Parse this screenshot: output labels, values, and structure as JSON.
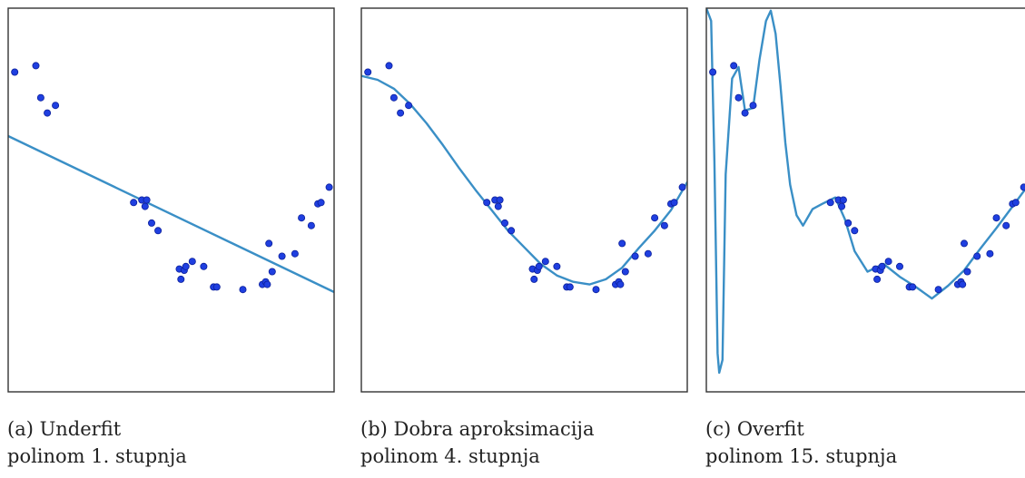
{
  "chart_data": [
    {
      "type": "scatter",
      "panel": "a",
      "caption_title": "(a) Underfit",
      "caption_sub": "polinom 1. stupnja",
      "xlim": [
        0,
        1
      ],
      "ylim": [
        -1.5,
        1.5
      ],
      "series": [
        {
          "role": "points",
          "x": [
            0.02,
            0.085,
            0.1,
            0.12,
            0.145,
            0.385,
            0.41,
            0.42,
            0.425,
            0.44,
            0.46,
            0.525,
            0.53,
            0.54,
            0.545,
            0.565,
            0.6,
            0.63,
            0.64,
            0.72,
            0.78,
            0.79,
            0.795,
            0.8,
            0.81,
            0.84,
            0.88,
            0.9,
            0.93,
            0.95,
            0.96,
            0.985
          ],
          "y": [
            1.0,
            1.05,
            0.8,
            0.68,
            0.74,
            -0.02,
            0.0,
            -0.05,
            0.0,
            -0.18,
            -0.24,
            -0.54,
            -0.62,
            -0.55,
            -0.52,
            -0.48,
            -0.52,
            -0.68,
            -0.68,
            -0.7,
            -0.66,
            -0.64,
            -0.66,
            -0.34,
            -0.56,
            -0.44,
            -0.42,
            -0.14,
            -0.2,
            -0.03,
            -0.02,
            0.1
          ]
        },
        {
          "role": "fit",
          "x": [
            0,
            1
          ],
          "y": [
            0.5,
            -0.72
          ]
        }
      ]
    },
    {
      "type": "scatter",
      "panel": "b",
      "caption_title": "(b) Dobra aproksimacija",
      "caption_sub": "polinom 4. stupnja",
      "xlim": [
        0,
        1
      ],
      "ylim": [
        -1.5,
        1.5
      ],
      "series": [
        {
          "role": "points",
          "x": [
            0.02,
            0.085,
            0.1,
            0.12,
            0.145,
            0.385,
            0.41,
            0.42,
            0.425,
            0.44,
            0.46,
            0.525,
            0.53,
            0.54,
            0.545,
            0.565,
            0.6,
            0.63,
            0.64,
            0.72,
            0.78,
            0.79,
            0.795,
            0.8,
            0.81,
            0.84,
            0.88,
            0.9,
            0.93,
            0.95,
            0.96,
            0.985
          ],
          "y": [
            1.0,
            1.05,
            0.8,
            0.68,
            0.74,
            -0.02,
            0.0,
            -0.05,
            0.0,
            -0.18,
            -0.24,
            -0.54,
            -0.62,
            -0.55,
            -0.52,
            -0.48,
            -0.52,
            -0.68,
            -0.68,
            -0.7,
            -0.66,
            -0.64,
            -0.66,
            -0.34,
            -0.56,
            -0.44,
            -0.42,
            -0.14,
            -0.2,
            -0.03,
            -0.02,
            0.1
          ]
        },
        {
          "role": "fit",
          "x": [
            0.0,
            0.05,
            0.1,
            0.15,
            0.2,
            0.25,
            0.3,
            0.35,
            0.4,
            0.45,
            0.5,
            0.55,
            0.6,
            0.65,
            0.7,
            0.75,
            0.8,
            0.85,
            0.9,
            0.95,
            1.0
          ],
          "y": [
            0.97,
            0.94,
            0.87,
            0.75,
            0.6,
            0.43,
            0.25,
            0.08,
            -0.08,
            -0.24,
            -0.37,
            -0.5,
            -0.59,
            -0.64,
            -0.66,
            -0.62,
            -0.53,
            -0.38,
            -0.24,
            -0.08,
            0.14
          ]
        }
      ]
    },
    {
      "type": "scatter",
      "panel": "c",
      "caption_title": "(c) Overfit",
      "caption_sub": "polinom 15. stupnja",
      "xlim": [
        0,
        1
      ],
      "ylim": [
        -1.5,
        1.5
      ],
      "series": [
        {
          "role": "points",
          "x": [
            0.02,
            0.085,
            0.1,
            0.12,
            0.145,
            0.385,
            0.41,
            0.42,
            0.425,
            0.44,
            0.46,
            0.525,
            0.53,
            0.54,
            0.545,
            0.565,
            0.6,
            0.63,
            0.64,
            0.72,
            0.78,
            0.79,
            0.795,
            0.8,
            0.81,
            0.84,
            0.88,
            0.9,
            0.93,
            0.95,
            0.96,
            0.985
          ],
          "y": [
            1.0,
            1.05,
            0.8,
            0.68,
            0.74,
            -0.02,
            0.0,
            -0.05,
            0.0,
            -0.18,
            -0.24,
            -0.54,
            -0.62,
            -0.55,
            -0.52,
            -0.48,
            -0.52,
            -0.68,
            -0.68,
            -0.7,
            -0.66,
            -0.64,
            -0.66,
            -0.34,
            -0.56,
            -0.44,
            -0.42,
            -0.14,
            -0.2,
            -0.03,
            -0.02,
            0.1
          ]
        },
        {
          "role": "fit",
          "x": [
            0.0,
            0.015,
            0.025,
            0.035,
            0.04,
            0.05,
            0.06,
            0.08,
            0.1,
            0.12,
            0.145,
            0.165,
            0.185,
            0.2,
            0.215,
            0.23,
            0.245,
            0.26,
            0.28,
            0.3,
            0.33,
            0.36,
            0.4,
            0.43,
            0.46,
            0.5,
            0.55,
            0.6,
            0.65,
            0.7,
            0.75,
            0.8,
            0.85,
            0.9,
            0.95,
            1.0
          ],
          "y": [
            1.5,
            1.4,
            0.3,
            -1.2,
            -1.35,
            -1.25,
            0.2,
            0.95,
            1.04,
            0.7,
            0.72,
            1.1,
            1.4,
            1.48,
            1.3,
            0.9,
            0.45,
            0.12,
            -0.12,
            -0.2,
            -0.07,
            -0.03,
            0.02,
            -0.15,
            -0.4,
            -0.56,
            -0.5,
            -0.6,
            -0.68,
            -0.77,
            -0.67,
            -0.55,
            -0.38,
            -0.22,
            -0.05,
            0.12
          ]
        }
      ]
    }
  ]
}
